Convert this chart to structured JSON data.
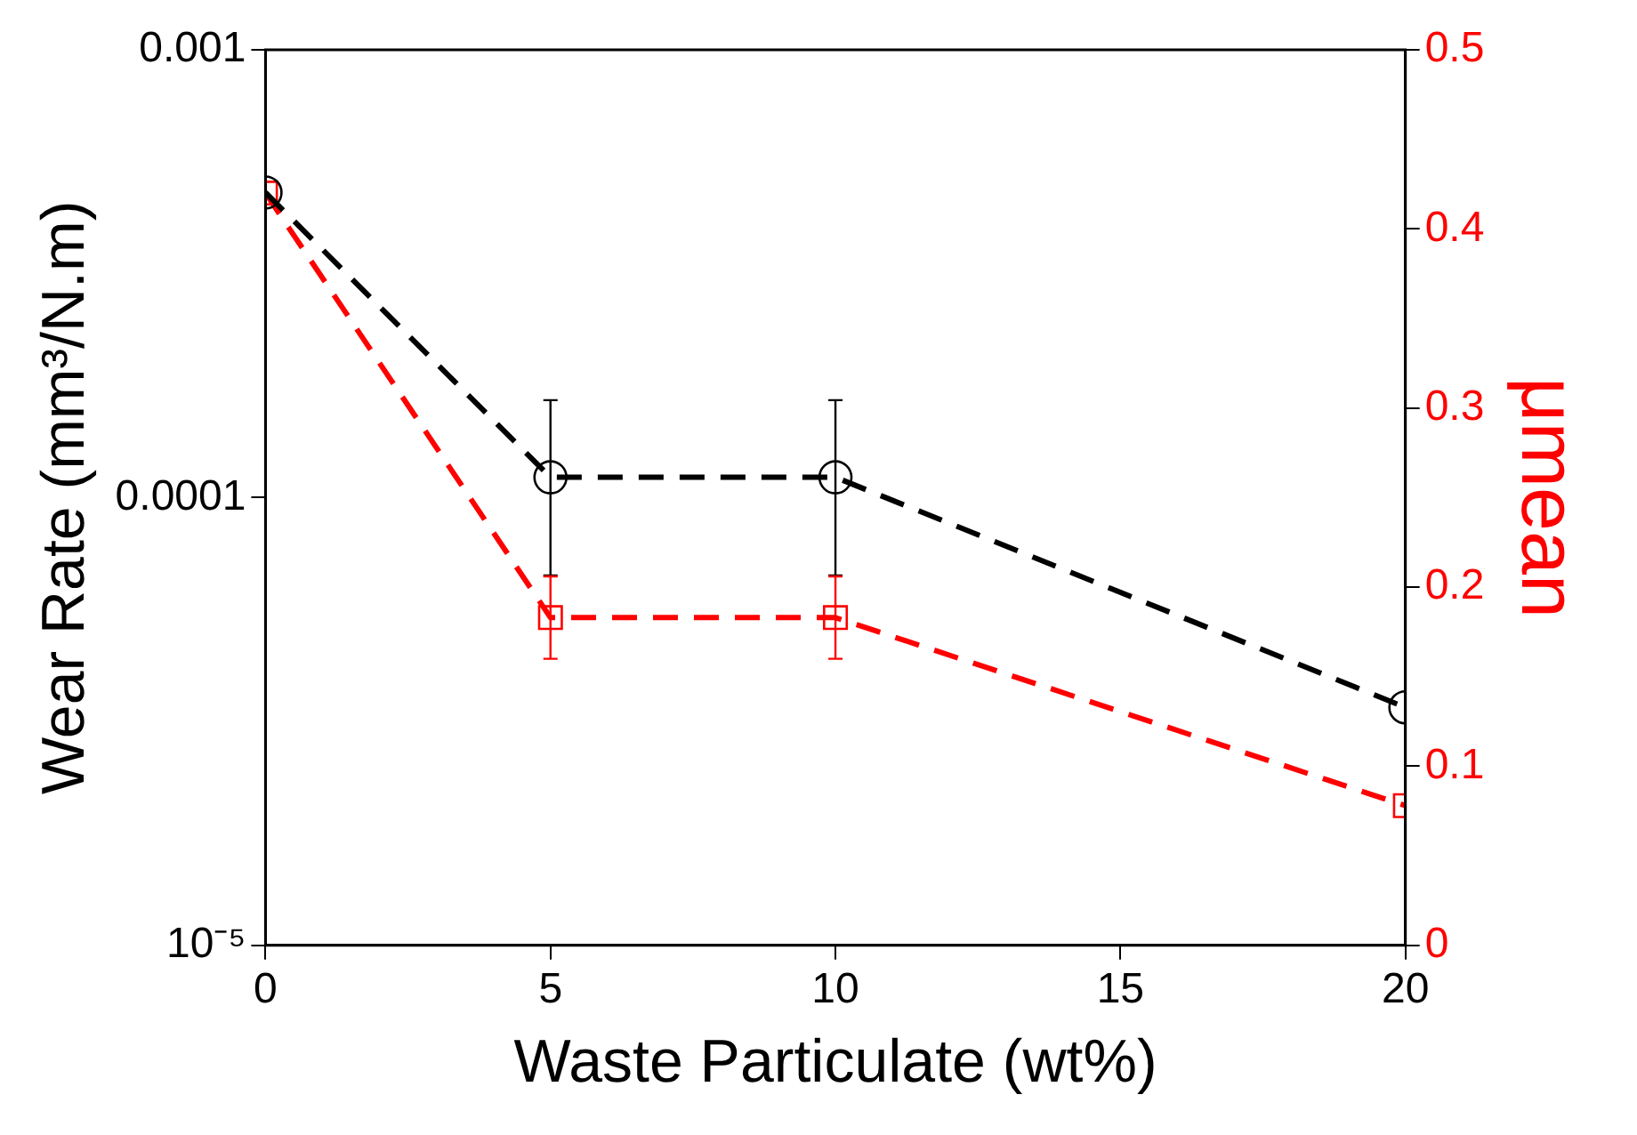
{
  "chart_data": {
    "type": "line",
    "xlabel": "Waste Particulate (wt%)",
    "ylabel": "Wear Rate (mm³/N.m)",
    "y2label": "μmean",
    "x": [
      0,
      5,
      10,
      20
    ],
    "series": [
      {
        "color": "#000000",
        "marker": "circle",
        "values": [
          0.00048,
          0.000111,
          0.000111,
          3.4e-05
        ],
        "errors": [
          null,
          [
            6.7e-05,
            0.000165
          ],
          [
            6.7e-05,
            0.000165
          ],
          null
        ]
      },
      {
        "color": "#ff0000",
        "marker": "square",
        "axis": "y2",
        "values": [
          0.42,
          0.183,
          0.183,
          0.078
        ],
        "errors": [
          null,
          0.023,
          0.023,
          null
        ]
      }
    ],
    "line_style": "dashed",
    "log": "y",
    "grid": false,
    "legend": false,
    "xlim": [
      0,
      20
    ],
    "xticks": [
      0,
      5,
      10,
      15,
      20
    ],
    "ylim": [
      1e-05,
      0.001
    ],
    "yticks": [
      {
        "value": 1e-05,
        "label": "10⁻⁵"
      },
      {
        "value": 0.0001,
        "label": "0.0001"
      },
      {
        "value": 0.001,
        "label": "0.001"
      }
    ],
    "y2lim": [
      0,
      0.5
    ],
    "y2ticks": [
      0,
      0.1,
      0.2,
      0.3,
      0.4,
      0.5
    ]
  }
}
